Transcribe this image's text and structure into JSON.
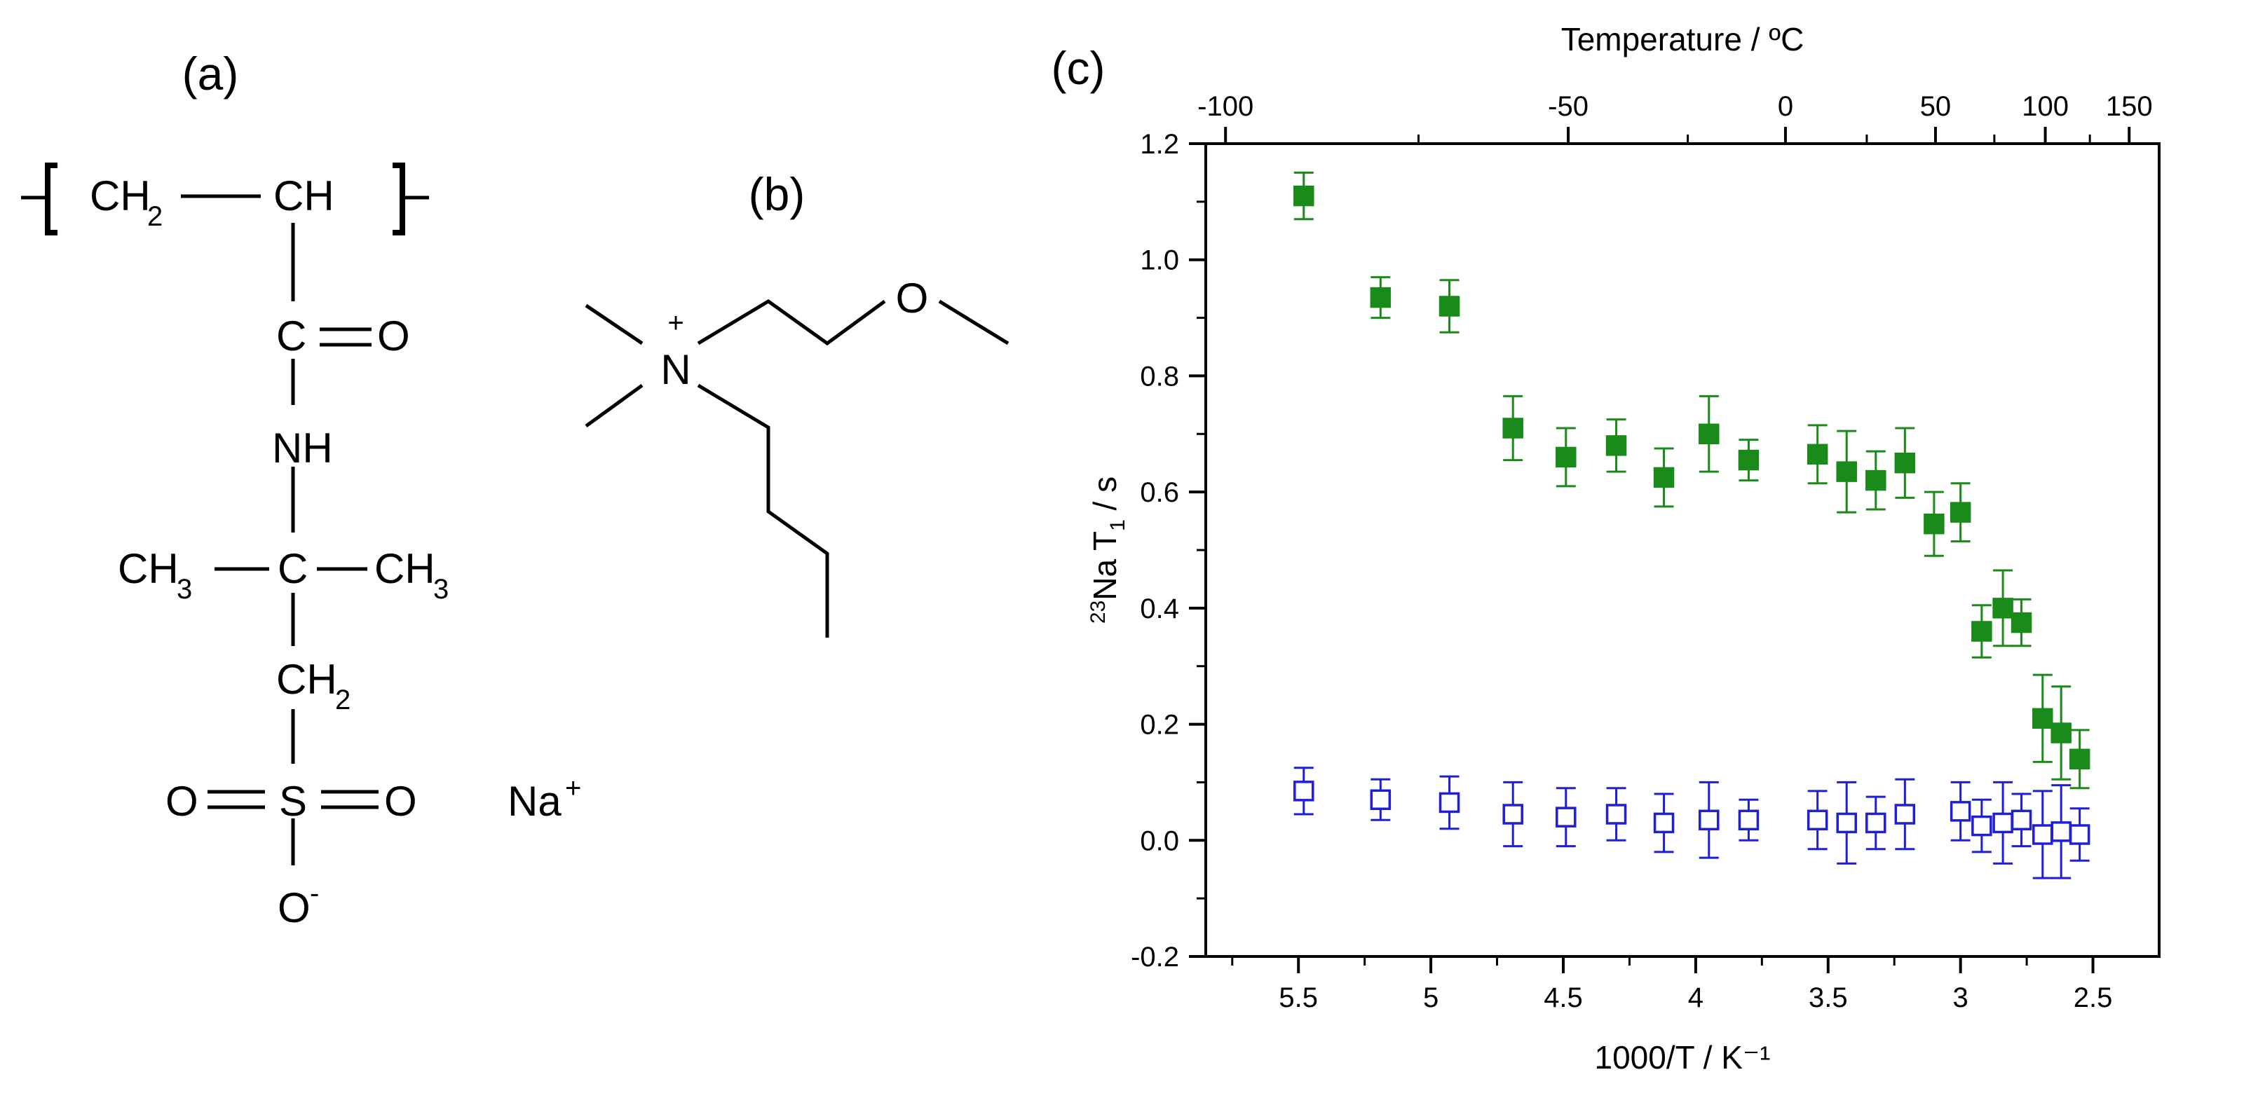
{
  "panels": {
    "a": {
      "label": "(a)",
      "structure": {
        "ch2_top": "CH",
        "ch2_top_sub": "2",
        "ch_top": "CH",
        "carbonyl_c": "C",
        "carbonyl_o": "O",
        "nh": "NH",
        "ch3_left": "CH",
        "ch3_left_sub": "3",
        "quat_c": "C",
        "ch3_right": "CH",
        "ch3_right_sub": "3",
        "ch2_mid": "CH",
        "ch2_mid_sub": "2",
        "sulfonyl_o_left": "O",
        "sulfur": "S",
        "sulfonyl_o_right": "O",
        "sulfonate_o": "O",
        "sulfonate_charge": "-",
        "counter_ion": "Na",
        "counter_ion_charge": "+"
      }
    },
    "b": {
      "label": "(b)",
      "structure": {
        "nitrogen": "N",
        "n_charge": "+",
        "ether_oxygen": "O"
      }
    },
    "c": {
      "label": "(c)"
    }
  },
  "colors": {
    "filled_series": "#1a8a1a",
    "open_series": "#1f1fd6",
    "axis": "#000000"
  },
  "chart_data": {
    "type": "scatter",
    "xlabel": "1000/T / K⁻¹",
    "ylabel": "Na T / s",
    "ylabel_super": "23",
    "ylabel_sub": "1",
    "top_axis_label": "Temperature / ºC",
    "xlim": [
      5.85,
      2.25
    ],
    "ylim": [
      -0.2,
      1.2
    ],
    "xticks": [
      5.5,
      5,
      4.5,
      4,
      3.5,
      3,
      2.5
    ],
    "xtick_labels": [
      "5.5",
      "5",
      "4.5",
      "4",
      "3.5",
      "3",
      "2.5"
    ],
    "yticks": [
      -0.2,
      0.0,
      0.2,
      0.4,
      0.6,
      0.8,
      1.0,
      1.2
    ],
    "ytick_labels": [
      "-0.2",
      "0.0",
      "0.2",
      "0.4",
      "0.6",
      "0.8",
      "1.0",
      "1.2"
    ],
    "top_ticks_celsius": [
      -100,
      -50,
      0,
      50,
      100,
      150
    ],
    "top_tick_labels": [
      "-100",
      "-50",
      "0",
      "50",
      "100",
      "150"
    ],
    "series": [
      {
        "name": "filled squares",
        "marker": "filled-square",
        "x": [
          5.48,
          5.19,
          4.93,
          4.69,
          4.49,
          4.3,
          4.12,
          3.95,
          3.8,
          3.54,
          3.43,
          3.32,
          3.21,
          3.1,
          3.0,
          2.92,
          2.84,
          2.77,
          2.69,
          2.62,
          2.55
        ],
        "y": [
          1.11,
          0.935,
          0.92,
          0.71,
          0.66,
          0.68,
          0.625,
          0.7,
          0.655,
          0.665,
          0.635,
          0.62,
          0.65,
          0.545,
          0.565,
          0.36,
          0.4,
          0.375,
          0.21,
          0.185,
          0.14
        ],
        "err": [
          0.04,
          0.035,
          0.045,
          0.055,
          0.05,
          0.045,
          0.05,
          0.065,
          0.035,
          0.05,
          0.07,
          0.05,
          0.06,
          0.055,
          0.05,
          0.045,
          0.065,
          0.04,
          0.075,
          0.08,
          0.05
        ]
      },
      {
        "name": "open squares",
        "marker": "open-square",
        "x": [
          5.48,
          5.19,
          4.93,
          4.69,
          4.49,
          4.3,
          4.12,
          3.95,
          3.8,
          3.54,
          3.43,
          3.32,
          3.21,
          3.0,
          2.92,
          2.84,
          2.77,
          2.69,
          2.62,
          2.55
        ],
        "y": [
          0.085,
          0.07,
          0.065,
          0.045,
          0.04,
          0.045,
          0.03,
          0.035,
          0.035,
          0.035,
          0.03,
          0.03,
          0.045,
          0.05,
          0.025,
          0.03,
          0.035,
          0.01,
          0.015,
          0.01
        ],
        "err": [
          0.04,
          0.035,
          0.045,
          0.055,
          0.05,
          0.045,
          0.05,
          0.065,
          0.035,
          0.05,
          0.07,
          0.045,
          0.06,
          0.05,
          0.045,
          0.07,
          0.045,
          0.075,
          0.08,
          0.045
        ]
      }
    ]
  }
}
